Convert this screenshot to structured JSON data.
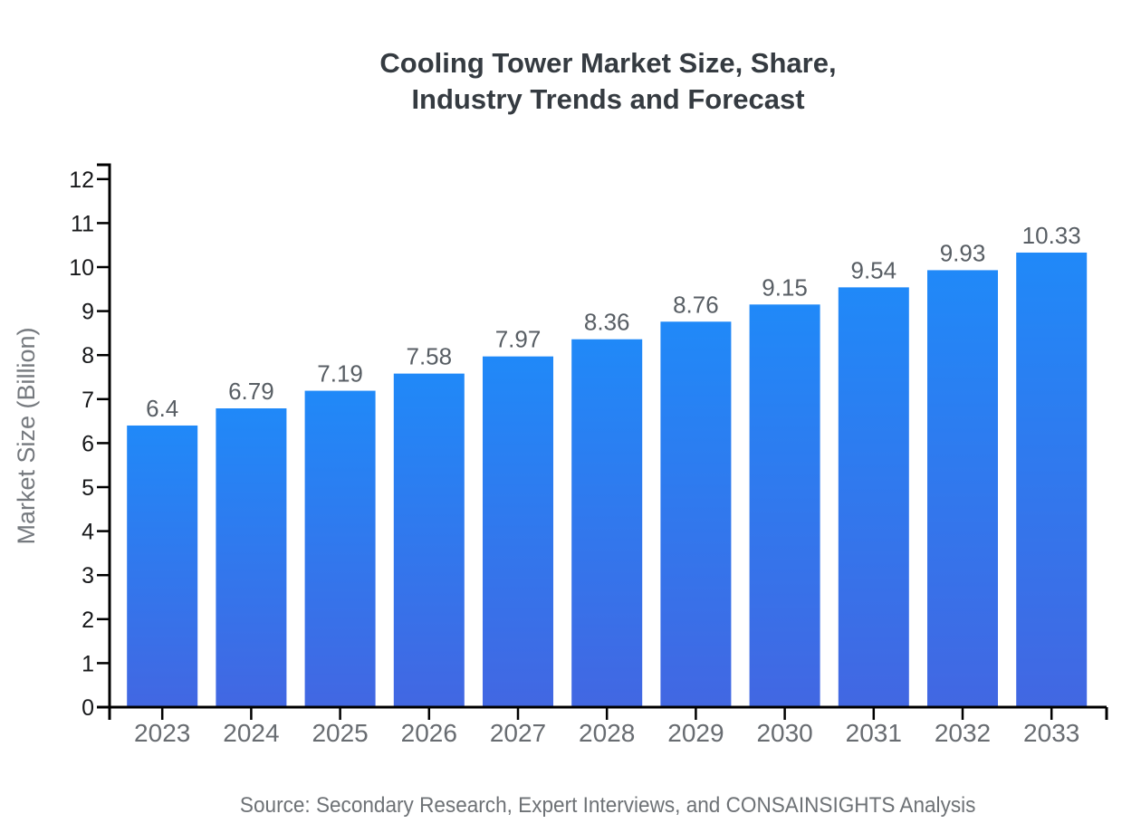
{
  "page": {
    "title_lines": [
      "Cooling Tower Market Size, Share,",
      "Industry Trends and Forecast"
    ],
    "source_note": "Source: Secondary Research, Expert Interviews, and CONSAINSIGHTS Analysis"
  },
  "chart_data": {
    "type": "bar",
    "title": "Cooling Tower Market Size, Share, Industry Trends and Forecast",
    "categories": [
      "2023",
      "2024",
      "2025",
      "2026",
      "2027",
      "2028",
      "2029",
      "2030",
      "2031",
      "2032",
      "2033"
    ],
    "values": [
      6.4,
      6.79,
      7.19,
      7.58,
      7.97,
      8.36,
      8.76,
      9.15,
      9.54,
      9.93,
      10.33
    ],
    "value_labels": [
      "6.4",
      "6.79",
      "7.19",
      "7.58",
      "7.97",
      "8.36",
      "8.76",
      "9.15",
      "9.54",
      "9.93",
      "10.33"
    ],
    "xlabel": "",
    "ylabel": "Market Size (Billion)",
    "ylim": [
      0,
      12
    ],
    "ytick_step": 1,
    "grid": false,
    "legend": "none",
    "data_labels": true,
    "colors": {
      "bar_gradient_top": "#2089f8",
      "bar_gradient_bottom": "#4267e2",
      "axis": "#000000",
      "y_tick_label": "#17181a",
      "x_tick_label": "#686c71",
      "value_label": "#585e64",
      "axis_title": "#75797e",
      "title": "#353b41",
      "source": "#6e7276",
      "background": "#ffffff"
    }
  }
}
